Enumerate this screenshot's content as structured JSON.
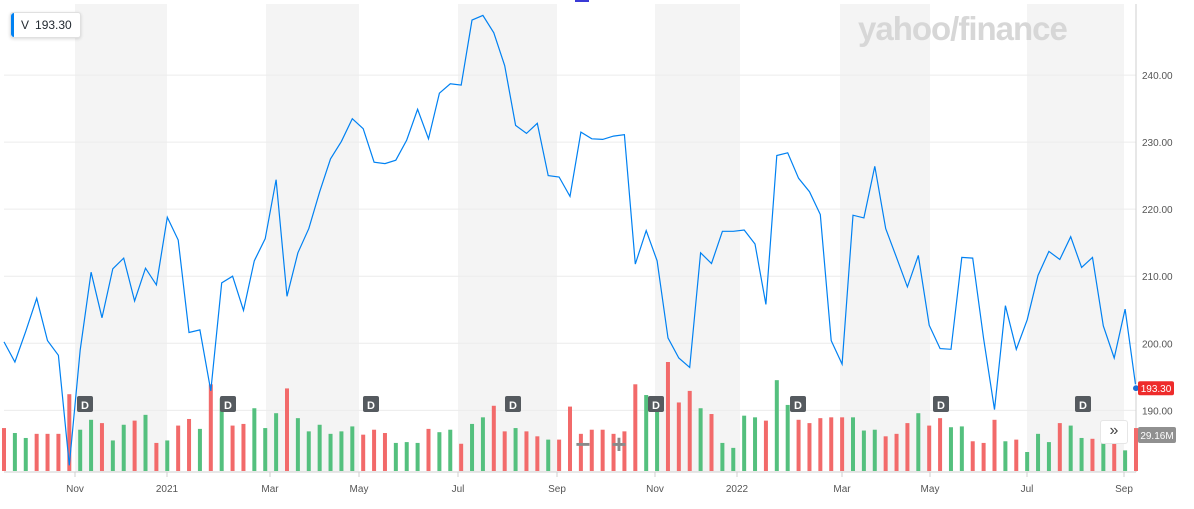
{
  "ticker": {
    "symbol": "V",
    "price": "193.30"
  },
  "brand": {
    "text": "yahoo/finance"
  },
  "price_tag": "193.30",
  "volume_tag": "29.16M",
  "zoom": {
    "minus": "−",
    "plus": "+"
  },
  "expand_icon": "»",
  "colors": {
    "line": "#0081f2",
    "up": "#54c07e",
    "down": "#f26a6a",
    "band": "#f4f4f4",
    "tag": "#ee2b2b",
    "dividend": "#555a5f"
  },
  "chart_data": {
    "type": "line",
    "title": "",
    "x_ticks": [
      "Nov",
      "2021",
      "Mar",
      "May",
      "Jul",
      "Sep",
      "Nov",
      "2022",
      "Mar",
      "May",
      "Jul",
      "Sep"
    ],
    "y_ticks": [
      190,
      200,
      210,
      220,
      230,
      240
    ],
    "ylim": [
      180.8,
      250.6
    ],
    "dividend_marker": "D",
    "series": [
      {
        "values": [
          200.2,
          197.2,
          201.8,
          206.7,
          200.4,
          198.2,
          181.8,
          199.0,
          210.6,
          203.8,
          211.1,
          212.7,
          206.3,
          211.2,
          208.7,
          218.8,
          215.4,
          201.6,
          202.0,
          192.9,
          209.0,
          210.0,
          204.9,
          212.3,
          215.6,
          224.4,
          207.0,
          213.5,
          217.1,
          222.6,
          227.5,
          230.1,
          233.5,
          232.0,
          227.0,
          226.8,
          227.3,
          230.3,
          234.9,
          230.5,
          237.3,
          238.7,
          238.5,
          248.2,
          248.9,
          246.3,
          241.4,
          232.5,
          231.3,
          232.8,
          225.0,
          224.8,
          221.9,
          231.5,
          230.5,
          230.4,
          230.9,
          231.1,
          211.8,
          216.8,
          212.3,
          200.8,
          197.8,
          196.4,
          213.5,
          211.9,
          216.7,
          216.7,
          216.9,
          214.8,
          205.8,
          228.0,
          228.4,
          224.6,
          222.6,
          219.2,
          200.4,
          196.9,
          219.1,
          218.7,
          226.4,
          217.1,
          212.8,
          208.4,
          213.1,
          202.7,
          199.2,
          199.1,
          212.8,
          212.7,
          200.7,
          190.1,
          205.6,
          199.1,
          203.5,
          210.1,
          213.7,
          212.5,
          215.9,
          211.3,
          212.8,
          202.6,
          197.8,
          205.1,
          193.3
        ]
      }
    ],
    "volume": [
      {
        "v": 0.52,
        "up": false
      },
      {
        "v": 0.46,
        "up": true
      },
      {
        "v": 0.4,
        "up": true
      },
      {
        "v": 0.45,
        "up": false
      },
      {
        "v": 0.45,
        "up": false
      },
      {
        "v": 0.45,
        "up": false
      },
      {
        "v": 0.93,
        "up": false
      },
      {
        "v": 0.5,
        "up": true
      },
      {
        "v": 0.62,
        "up": true
      },
      {
        "v": 0.58,
        "up": false
      },
      {
        "v": 0.37,
        "up": true
      },
      {
        "v": 0.56,
        "up": true
      },
      {
        "v": 0.61,
        "up": false
      },
      {
        "v": 0.68,
        "up": true
      },
      {
        "v": 0.34,
        "up": false
      },
      {
        "v": 0.37,
        "up": true
      },
      {
        "v": 0.55,
        "up": false
      },
      {
        "v": 0.63,
        "up": false
      },
      {
        "v": 0.51,
        "up": true
      },
      {
        "v": 1.05,
        "up": false
      },
      {
        "v": 0.88,
        "up": true
      },
      {
        "v": 0.55,
        "up": false
      },
      {
        "v": 0.57,
        "up": false
      },
      {
        "v": 0.76,
        "up": true
      },
      {
        "v": 0.52,
        "up": true
      },
      {
        "v": 0.7,
        "up": true
      },
      {
        "v": 1.0,
        "up": false
      },
      {
        "v": 0.64,
        "up": true
      },
      {
        "v": 0.48,
        "up": true
      },
      {
        "v": 0.56,
        "up": true
      },
      {
        "v": 0.45,
        "up": true
      },
      {
        "v": 0.48,
        "up": true
      },
      {
        "v": 0.54,
        "up": true
      },
      {
        "v": 0.44,
        "up": false
      },
      {
        "v": 0.5,
        "up": false
      },
      {
        "v": 0.46,
        "up": false
      },
      {
        "v": 0.34,
        "up": true
      },
      {
        "v": 0.35,
        "up": true
      },
      {
        "v": 0.34,
        "up": true
      },
      {
        "v": 0.51,
        "up": false
      },
      {
        "v": 0.47,
        "up": true
      },
      {
        "v": 0.5,
        "up": true
      },
      {
        "v": 0.33,
        "up": false
      },
      {
        "v": 0.57,
        "up": true
      },
      {
        "v": 0.65,
        "up": true
      },
      {
        "v": 0.79,
        "up": false
      },
      {
        "v": 0.48,
        "up": false
      },
      {
        "v": 0.52,
        "up": true
      },
      {
        "v": 0.48,
        "up": false
      },
      {
        "v": 0.42,
        "up": false
      },
      {
        "v": 0.38,
        "up": true
      },
      {
        "v": 0.38,
        "up": false
      },
      {
        "v": 0.78,
        "up": false
      },
      {
        "v": 0.45,
        "up": false
      },
      {
        "v": 0.5,
        "up": false
      },
      {
        "v": 0.5,
        "up": false
      },
      {
        "v": 0.45,
        "up": false
      },
      {
        "v": 0.48,
        "up": false
      },
      {
        "v": 1.05,
        "up": false
      },
      {
        "v": 0.92,
        "up": true
      },
      {
        "v": 0.9,
        "up": true
      },
      {
        "v": 1.32,
        "up": false
      },
      {
        "v": 0.83,
        "up": false
      },
      {
        "v": 0.97,
        "up": false
      },
      {
        "v": 0.76,
        "up": true
      },
      {
        "v": 0.69,
        "up": false
      },
      {
        "v": 0.34,
        "up": true
      },
      {
        "v": 0.28,
        "up": true
      },
      {
        "v": 0.67,
        "up": true
      },
      {
        "v": 0.65,
        "up": true
      },
      {
        "v": 0.61,
        "up": false
      },
      {
        "v": 1.1,
        "up": true
      },
      {
        "v": 0.8,
        "up": true
      },
      {
        "v": 0.62,
        "up": false
      },
      {
        "v": 0.58,
        "up": false
      },
      {
        "v": 0.64,
        "up": false
      },
      {
        "v": 0.65,
        "up": false
      },
      {
        "v": 0.65,
        "up": false
      },
      {
        "v": 0.65,
        "up": true
      },
      {
        "v": 0.49,
        "up": true
      },
      {
        "v": 0.5,
        "up": true
      },
      {
        "v": 0.42,
        "up": false
      },
      {
        "v": 0.45,
        "up": false
      },
      {
        "v": 0.58,
        "up": false
      },
      {
        "v": 0.7,
        "up": true
      },
      {
        "v": 0.55,
        "up": false
      },
      {
        "v": 0.64,
        "up": false
      },
      {
        "v": 0.53,
        "up": true
      },
      {
        "v": 0.54,
        "up": true
      },
      {
        "v": 0.36,
        "up": false
      },
      {
        "v": 0.34,
        "up": false
      },
      {
        "v": 0.62,
        "up": false
      },
      {
        "v": 0.36,
        "up": true
      },
      {
        "v": 0.38,
        "up": false
      },
      {
        "v": 0.23,
        "up": true
      },
      {
        "v": 0.45,
        "up": true
      },
      {
        "v": 0.35,
        "up": true
      },
      {
        "v": 0.58,
        "up": false
      },
      {
        "v": 0.55,
        "up": true
      },
      {
        "v": 0.4,
        "up": true
      },
      {
        "v": 0.39,
        "up": false
      },
      {
        "v": 0.36,
        "up": true
      },
      {
        "v": 0.38,
        "up": false
      },
      {
        "v": 0.25,
        "up": true
      },
      {
        "v": 0.52,
        "up": false
      }
    ],
    "legend": "none",
    "grid": true
  }
}
